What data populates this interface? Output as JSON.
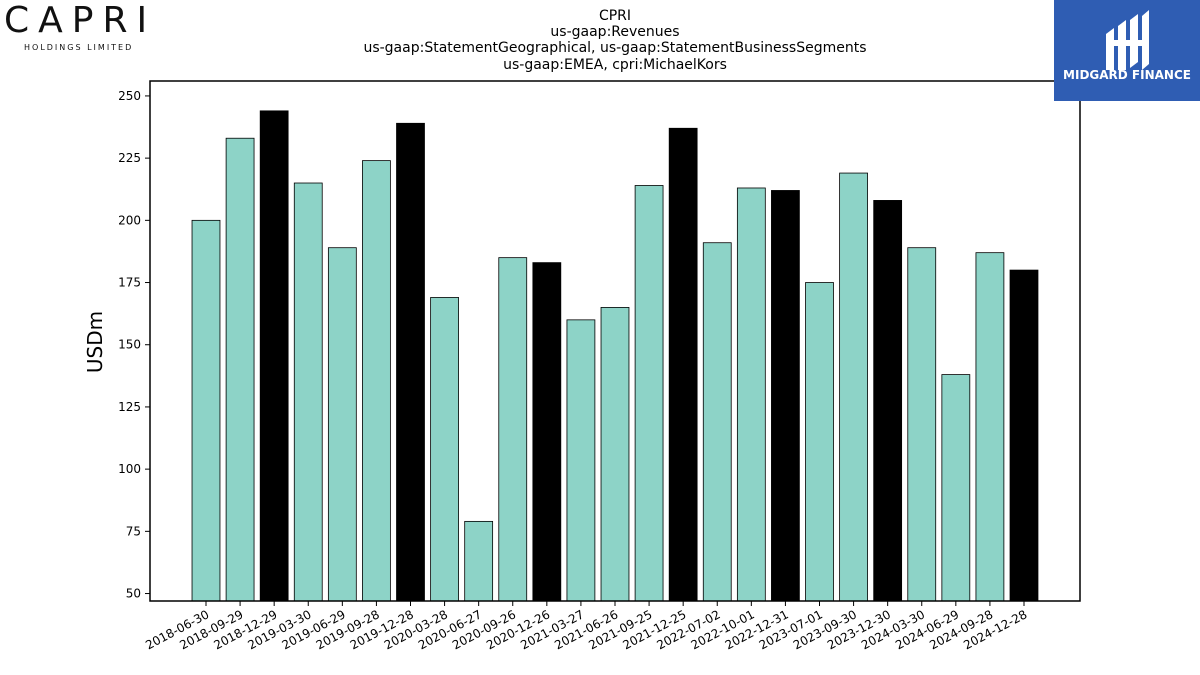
{
  "logos": {
    "left_wordmark": "CAPRI",
    "left_subtitle": "HOLDINGS LIMITED",
    "right_text": "MIDGARD FINANCE",
    "right_bg_color": "#2f5db3"
  },
  "chart_data": {
    "type": "bar",
    "title": [
      "CPRI",
      "us-gaap:Revenues",
      "us-gaap:StatementGeographical, us-gaap:StatementBusinessSegments",
      "us-gaap:EMEA, cpri:MichaelKors"
    ],
    "ylabel": "USDm",
    "xlabel": "",
    "ylim": [
      47,
      256
    ],
    "yticks": [
      50,
      75,
      100,
      125,
      150,
      175,
      200,
      225,
      250
    ],
    "grid": false,
    "categories": [
      "2018-06-30",
      "2018-09-29",
      "2018-12-29",
      "2019-03-30",
      "2019-06-29",
      "2019-09-28",
      "2019-12-28",
      "2020-03-28",
      "2020-06-27",
      "2020-09-26",
      "2020-12-26",
      "2021-03-27",
      "2021-06-26",
      "2021-09-25",
      "2021-12-25",
      "2022-07-02",
      "2022-10-01",
      "2022-12-31",
      "2023-07-01",
      "2023-09-30",
      "2023-12-30",
      "2024-03-30",
      "2024-06-29",
      "2024-09-28",
      "2024-12-28"
    ],
    "values": [
      200,
      233,
      244,
      215,
      189,
      224,
      239,
      169,
      79,
      185,
      183,
      160,
      165,
      214,
      237,
      191,
      213,
      212,
      175,
      219,
      208,
      189,
      138,
      187,
      180
    ],
    "highlight": [
      false,
      false,
      true,
      false,
      false,
      false,
      true,
      false,
      false,
      false,
      true,
      false,
      false,
      false,
      true,
      false,
      false,
      true,
      false,
      false,
      true,
      false,
      false,
      false,
      true
    ],
    "colors": {
      "bar": "#8dd3c7",
      "highlight": "#000000",
      "edge": "#000000"
    }
  }
}
